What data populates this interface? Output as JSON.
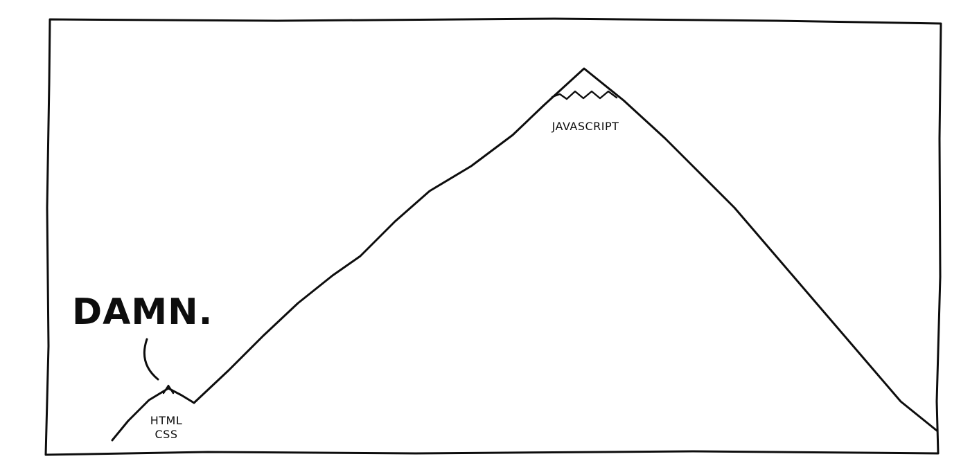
{
  "comic": {
    "exclamation": "DAMN.",
    "peaks": {
      "big": "JAVASCRIPT",
      "small_line1": "HTML",
      "small_line2": "CSS"
    }
  }
}
